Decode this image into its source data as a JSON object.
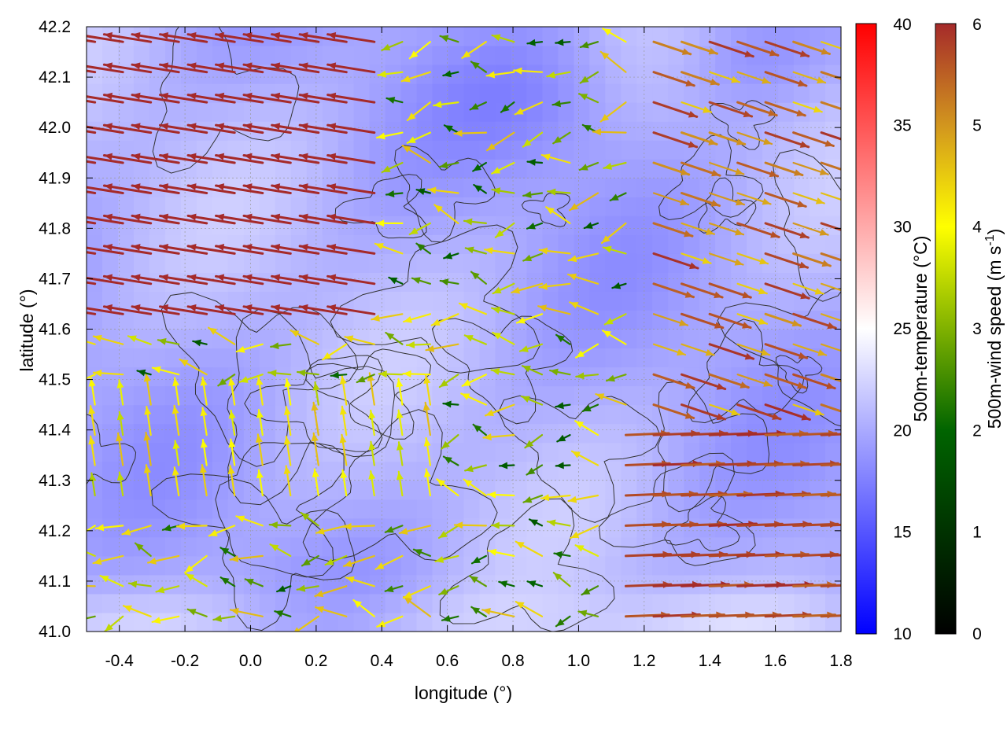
{
  "chart_data": {
    "type": "heatmap",
    "title": "",
    "xlabel": "longitude (°)",
    "ylabel": "latitude (°)",
    "xlim": [
      -0.5,
      1.8
    ],
    "ylim": [
      41.0,
      42.2
    ],
    "grid": true,
    "x_ticks": [
      "-0.4",
      "-0.2",
      "0.0",
      "0.2",
      "0.4",
      "0.6",
      "0.8",
      "1.0",
      "1.2",
      "1.4",
      "1.6",
      "1.8"
    ],
    "x_tick_values": [
      -0.4,
      -0.2,
      0.0,
      0.2,
      0.4,
      0.6,
      0.8,
      1.0,
      1.2,
      1.4,
      1.6,
      1.8
    ],
    "y_ticks": [
      "41.0",
      "41.1",
      "41.2",
      "41.3",
      "41.4",
      "41.5",
      "41.6",
      "41.7",
      "41.8",
      "41.9",
      "42.0",
      "42.1",
      "42.2"
    ],
    "y_tick_values": [
      41.0,
      41.1,
      41.2,
      41.3,
      41.4,
      41.5,
      41.6,
      41.7,
      41.8,
      41.9,
      42.0,
      42.1,
      42.2
    ],
    "background_field": {
      "name": "500m-temperature",
      "label": "500m-temperature (°C)",
      "range": [
        10,
        40
      ],
      "ticks": [
        "10",
        "15",
        "20",
        "25",
        "30",
        "35",
        "40"
      ],
      "tick_values": [
        10,
        15,
        20,
        25,
        30,
        35,
        40
      ],
      "colors": [
        "#0000ff",
        "#ffffff",
        "#ff0000"
      ],
      "typical_range": [
        17,
        23
      ]
    },
    "vector_field": {
      "name": "500m-wind",
      "label_main": "500m-wind speed (m s",
      "label_sup": "-1",
      "label_end": ")",
      "range": [
        0,
        6
      ],
      "ticks": [
        "0",
        "1",
        "2",
        "3",
        "4",
        "5",
        "6"
      ],
      "tick_values": [
        0,
        1,
        2,
        3,
        4,
        5,
        6
      ],
      "colors": [
        "#000000",
        "#006400",
        "#ffff00",
        "#d2961e",
        "#a52a2a"
      ],
      "regimes": [
        {
          "region": "north-west",
          "speed": 6.0,
          "direction": "from east-south-east (arrows pointing west-north-west)"
        },
        {
          "region": "centre",
          "speed": 2.5,
          "direction": "weak, variable, mostly westward"
        },
        {
          "region": "south-west",
          "speed": 3.5,
          "direction": "northward"
        },
        {
          "region": "south-east",
          "speed": 6.0,
          "direction": "from west (arrows pointing east)"
        }
      ]
    },
    "contours": {
      "color": "#333333",
      "description": "topography contour lines"
    }
  }
}
